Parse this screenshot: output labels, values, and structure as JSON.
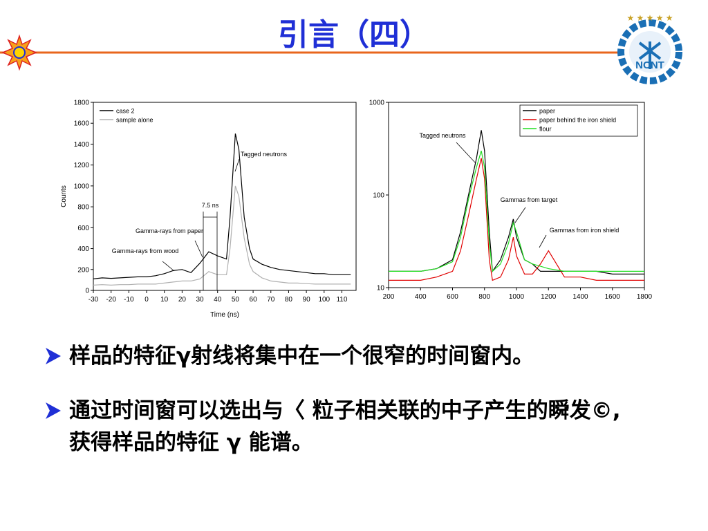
{
  "slide": {
    "title": "引言（四）",
    "bullets": [
      "样品的特征γ射线将集中在一个很窄的时间窗内。",
      "通过时间窗可以选出与〈 粒子相关联的中子产生的瞬发©, 获得样品的特征 γ 能谱。"
    ],
    "logo_text": "NCNT"
  },
  "chart_data": [
    {
      "type": "line",
      "x_label": "Time (ns)",
      "y_label": "Counts",
      "xlim": [
        -30,
        118
      ],
      "ylim": [
        0,
        1800
      ],
      "xticks": [
        -30,
        -20,
        -10,
        0,
        10,
        20,
        30,
        40,
        50,
        60,
        70,
        80,
        90,
        100,
        110
      ],
      "yticks": [
        0,
        200,
        400,
        600,
        800,
        1000,
        1200,
        1400,
        1600,
        1800
      ],
      "legend": "top-left",
      "x": [
        -30,
        -25,
        -20,
        -15,
        -10,
        -5,
        0,
        5,
        10,
        15,
        20,
        25,
        30,
        35,
        40,
        45,
        47,
        50,
        52,
        55,
        58,
        60,
        65,
        70,
        75,
        80,
        85,
        90,
        95,
        100,
        105,
        110,
        115
      ],
      "series": [
        {
          "name": "case 2",
          "color": "#000000",
          "values": [
            110,
            120,
            115,
            120,
            125,
            130,
            130,
            140,
            160,
            190,
            200,
            170,
            260,
            370,
            330,
            300,
            700,
            1500,
            1350,
            700,
            400,
            300,
            250,
            220,
            200,
            190,
            180,
            170,
            160,
            160,
            150,
            150,
            150
          ]
        },
        {
          "name": "sample alone",
          "color": "#b0b0b0",
          "values": [
            50,
            55,
            50,
            55,
            55,
            60,
            60,
            60,
            70,
            80,
            90,
            90,
            110,
            180,
            150,
            150,
            400,
            1000,
            900,
            500,
            250,
            180,
            120,
            90,
            80,
            70,
            70,
            65,
            60,
            60,
            60,
            60,
            60
          ]
        }
      ],
      "annotations": [
        "Tagged neutrons",
        "Gamma-rays from paper",
        "Gamma-rays from wood",
        "7.5 ns"
      ]
    },
    {
      "type": "line",
      "log_y": true,
      "xlim": [
        200,
        1800
      ],
      "ylim": [
        10,
        1000
      ],
      "xticks": [
        200,
        400,
        600,
        800,
        1000,
        1200,
        1400,
        1600,
        1800
      ],
      "yticks": [
        10,
        100,
        1000
      ],
      "legend": "top-right",
      "x": [
        200,
        300,
        400,
        500,
        600,
        650,
        700,
        750,
        780,
        800,
        830,
        850,
        900,
        950,
        980,
        1000,
        1050,
        1100,
        1150,
        1200,
        1300,
        1400,
        1500,
        1600,
        1700,
        1800
      ],
      "series": [
        {
          "name": "paper",
          "color": "#000000",
          "values": [
            15,
            15,
            15,
            16,
            20,
            40,
            100,
            250,
            500,
            300,
            40,
            15,
            20,
            35,
            55,
            35,
            20,
            18,
            15,
            15,
            15,
            15,
            15,
            14,
            14,
            14
          ]
        },
        {
          "name": "paper behind the iron shield",
          "color": "#e00000",
          "values": [
            12,
            12,
            12,
            13,
            15,
            25,
            60,
            150,
            250,
            150,
            20,
            12,
            13,
            20,
            35,
            22,
            14,
            14,
            18,
            25,
            13,
            13,
            12,
            12,
            12,
            12
          ]
        },
        {
          "name": "flour",
          "color": "#22dd22",
          "values": [
            15,
            15,
            15,
            16,
            19,
            35,
            90,
            200,
            300,
            200,
            30,
            15,
            18,
            30,
            50,
            40,
            20,
            18,
            17,
            16,
            15,
            15,
            15,
            15,
            15,
            15
          ]
        }
      ],
      "annotations": [
        "Tagged neutrons",
        "Gammas from target",
        "Gammas from iron shield"
      ]
    }
  ]
}
